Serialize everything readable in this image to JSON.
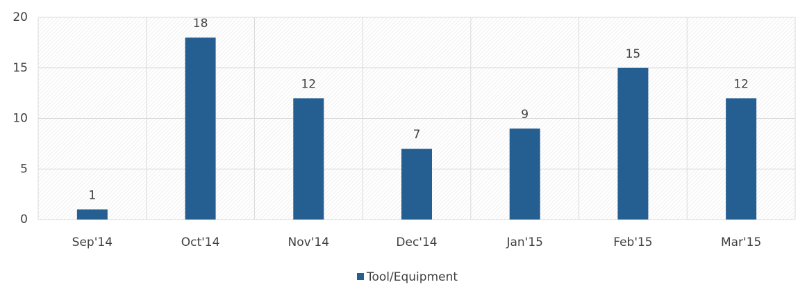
{
  "chart_data": {
    "type": "bar",
    "categories": [
      "Sep'14",
      "Oct'14",
      "Nov'14",
      "Dec'14",
      "Jan'15",
      "Feb'15",
      "Mar'15"
    ],
    "series": [
      {
        "name": "Tool/Equipment",
        "color": "#255e91",
        "values": [
          1,
          18,
          12,
          7,
          9,
          15,
          12
        ]
      }
    ],
    "ylim": [
      0,
      20
    ],
    "yticks": [
      0,
      5,
      10,
      15,
      20
    ],
    "grid": true,
    "legend": "bottom"
  }
}
